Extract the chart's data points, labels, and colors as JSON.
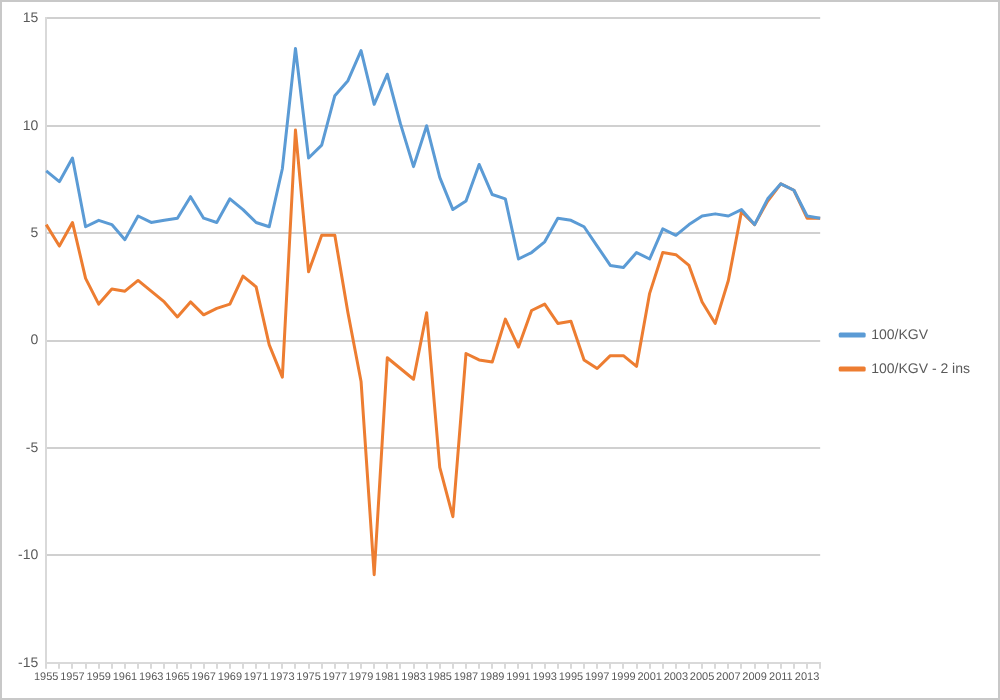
{
  "chart_data": {
    "type": "line",
    "categories": [
      "1955",
      null,
      "1957",
      null,
      "1959",
      null,
      "1961",
      null,
      "1963",
      null,
      "1965",
      null,
      "1967",
      null,
      "1969",
      null,
      "1971",
      null,
      "1973",
      null,
      "1975",
      null,
      "1977",
      null,
      "1979",
      null,
      "1981",
      null,
      "1983",
      null,
      "1985",
      null,
      "1987",
      null,
      "1989",
      null,
      "1991",
      null,
      "1993",
      null,
      "1995",
      null,
      "1997",
      null,
      "1999",
      null,
      "2001",
      null,
      "2003",
      null,
      "2005",
      null,
      "2007",
      null,
      "2009",
      null,
      "2011",
      null,
      "2013",
      null
    ],
    "series": [
      {
        "name": "100/KGV",
        "color": "#5b9bd5",
        "values": [
          7.9,
          7.4,
          8.5,
          5.3,
          5.6,
          5.4,
          4.7,
          5.8,
          5.5,
          5.6,
          5.7,
          6.7,
          5.7,
          5.5,
          6.6,
          6.1,
          5.5,
          5.3,
          8.0,
          13.6,
          8.5,
          9.1,
          11.4,
          12.1,
          13.5,
          11.0,
          12.4,
          10.1,
          8.1,
          10.0,
          7.6,
          6.1,
          6.5,
          8.2,
          6.8,
          6.6,
          3.8,
          4.1,
          4.6,
          5.7,
          5.6,
          5.3,
          4.4,
          3.5,
          3.4,
          4.1,
          3.8,
          5.2,
          4.9,
          5.4,
          5.8,
          5.9,
          5.8,
          6.1,
          5.4,
          6.6,
          7.3,
          7.0,
          5.8,
          5.7
        ]
      },
      {
        "name": "100/KGV - 2 ins",
        "color": "#ed7d31",
        "values": [
          5.4,
          4.4,
          5.5,
          2.9,
          1.7,
          2.4,
          2.3,
          2.8,
          2.3,
          1.8,
          1.1,
          1.8,
          1.2,
          1.5,
          1.7,
          3.0,
          2.5,
          -0.2,
          -1.7,
          9.8,
          3.2,
          4.9,
          4.9,
          1.3,
          -1.9,
          -10.9,
          -0.8,
          -1.3,
          -1.8,
          1.3,
          -5.9,
          -8.2,
          -0.6,
          -0.9,
          -1.0,
          1.0,
          -0.3,
          1.4,
          1.7,
          0.8,
          0.9,
          -0.9,
          -1.3,
          -0.7,
          -0.7,
          -1.2,
          2.2,
          4.1,
          4.0,
          3.5,
          1.8,
          0.8,
          2.8,
          6.0,
          5.4,
          6.5,
          7.3,
          7.0,
          5.7,
          5.7
        ]
      }
    ],
    "ylim": [
      -15,
      15
    ],
    "yticks": [
      -15,
      -10,
      -5,
      0,
      5,
      10,
      15
    ],
    "grid": "y",
    "legend": "right",
    "marker": "none",
    "line_style": "solid"
  }
}
